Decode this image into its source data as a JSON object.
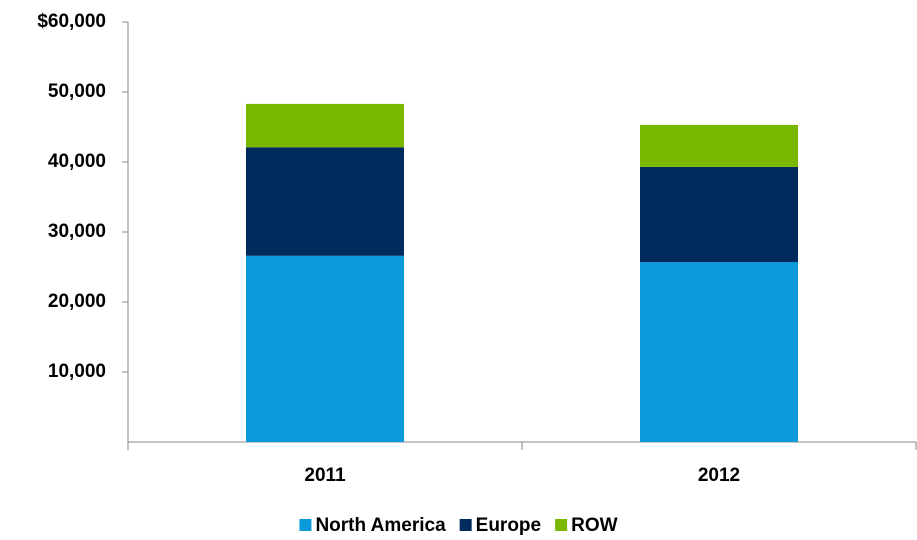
{
  "chart_data": {
    "type": "stacked_bar",
    "categories": [
      "2011",
      "2012"
    ],
    "series": [
      {
        "name": "North America",
        "color": "#0a9ad9",
        "values": [
          26600,
          25700
        ]
      },
      {
        "name": "Europe",
        "color": "#002b5c",
        "values": [
          15500,
          13600
        ]
      },
      {
        "name": "ROW",
        "color": "#7ab800",
        "values": [
          6200,
          6000
        ]
      }
    ],
    "ylim": [
      0,
      60000
    ],
    "yticks": [
      {
        "value": 10000,
        "label": "10,000"
      },
      {
        "value": 20000,
        "label": "20,000"
      },
      {
        "value": 30000,
        "label": "30,000"
      },
      {
        "value": 40000,
        "label": "40,000"
      },
      {
        "value": 50000,
        "label": "50,000"
      },
      {
        "value": 60000,
        "label": "$60,000"
      }
    ],
    "legend": "bottom"
  }
}
